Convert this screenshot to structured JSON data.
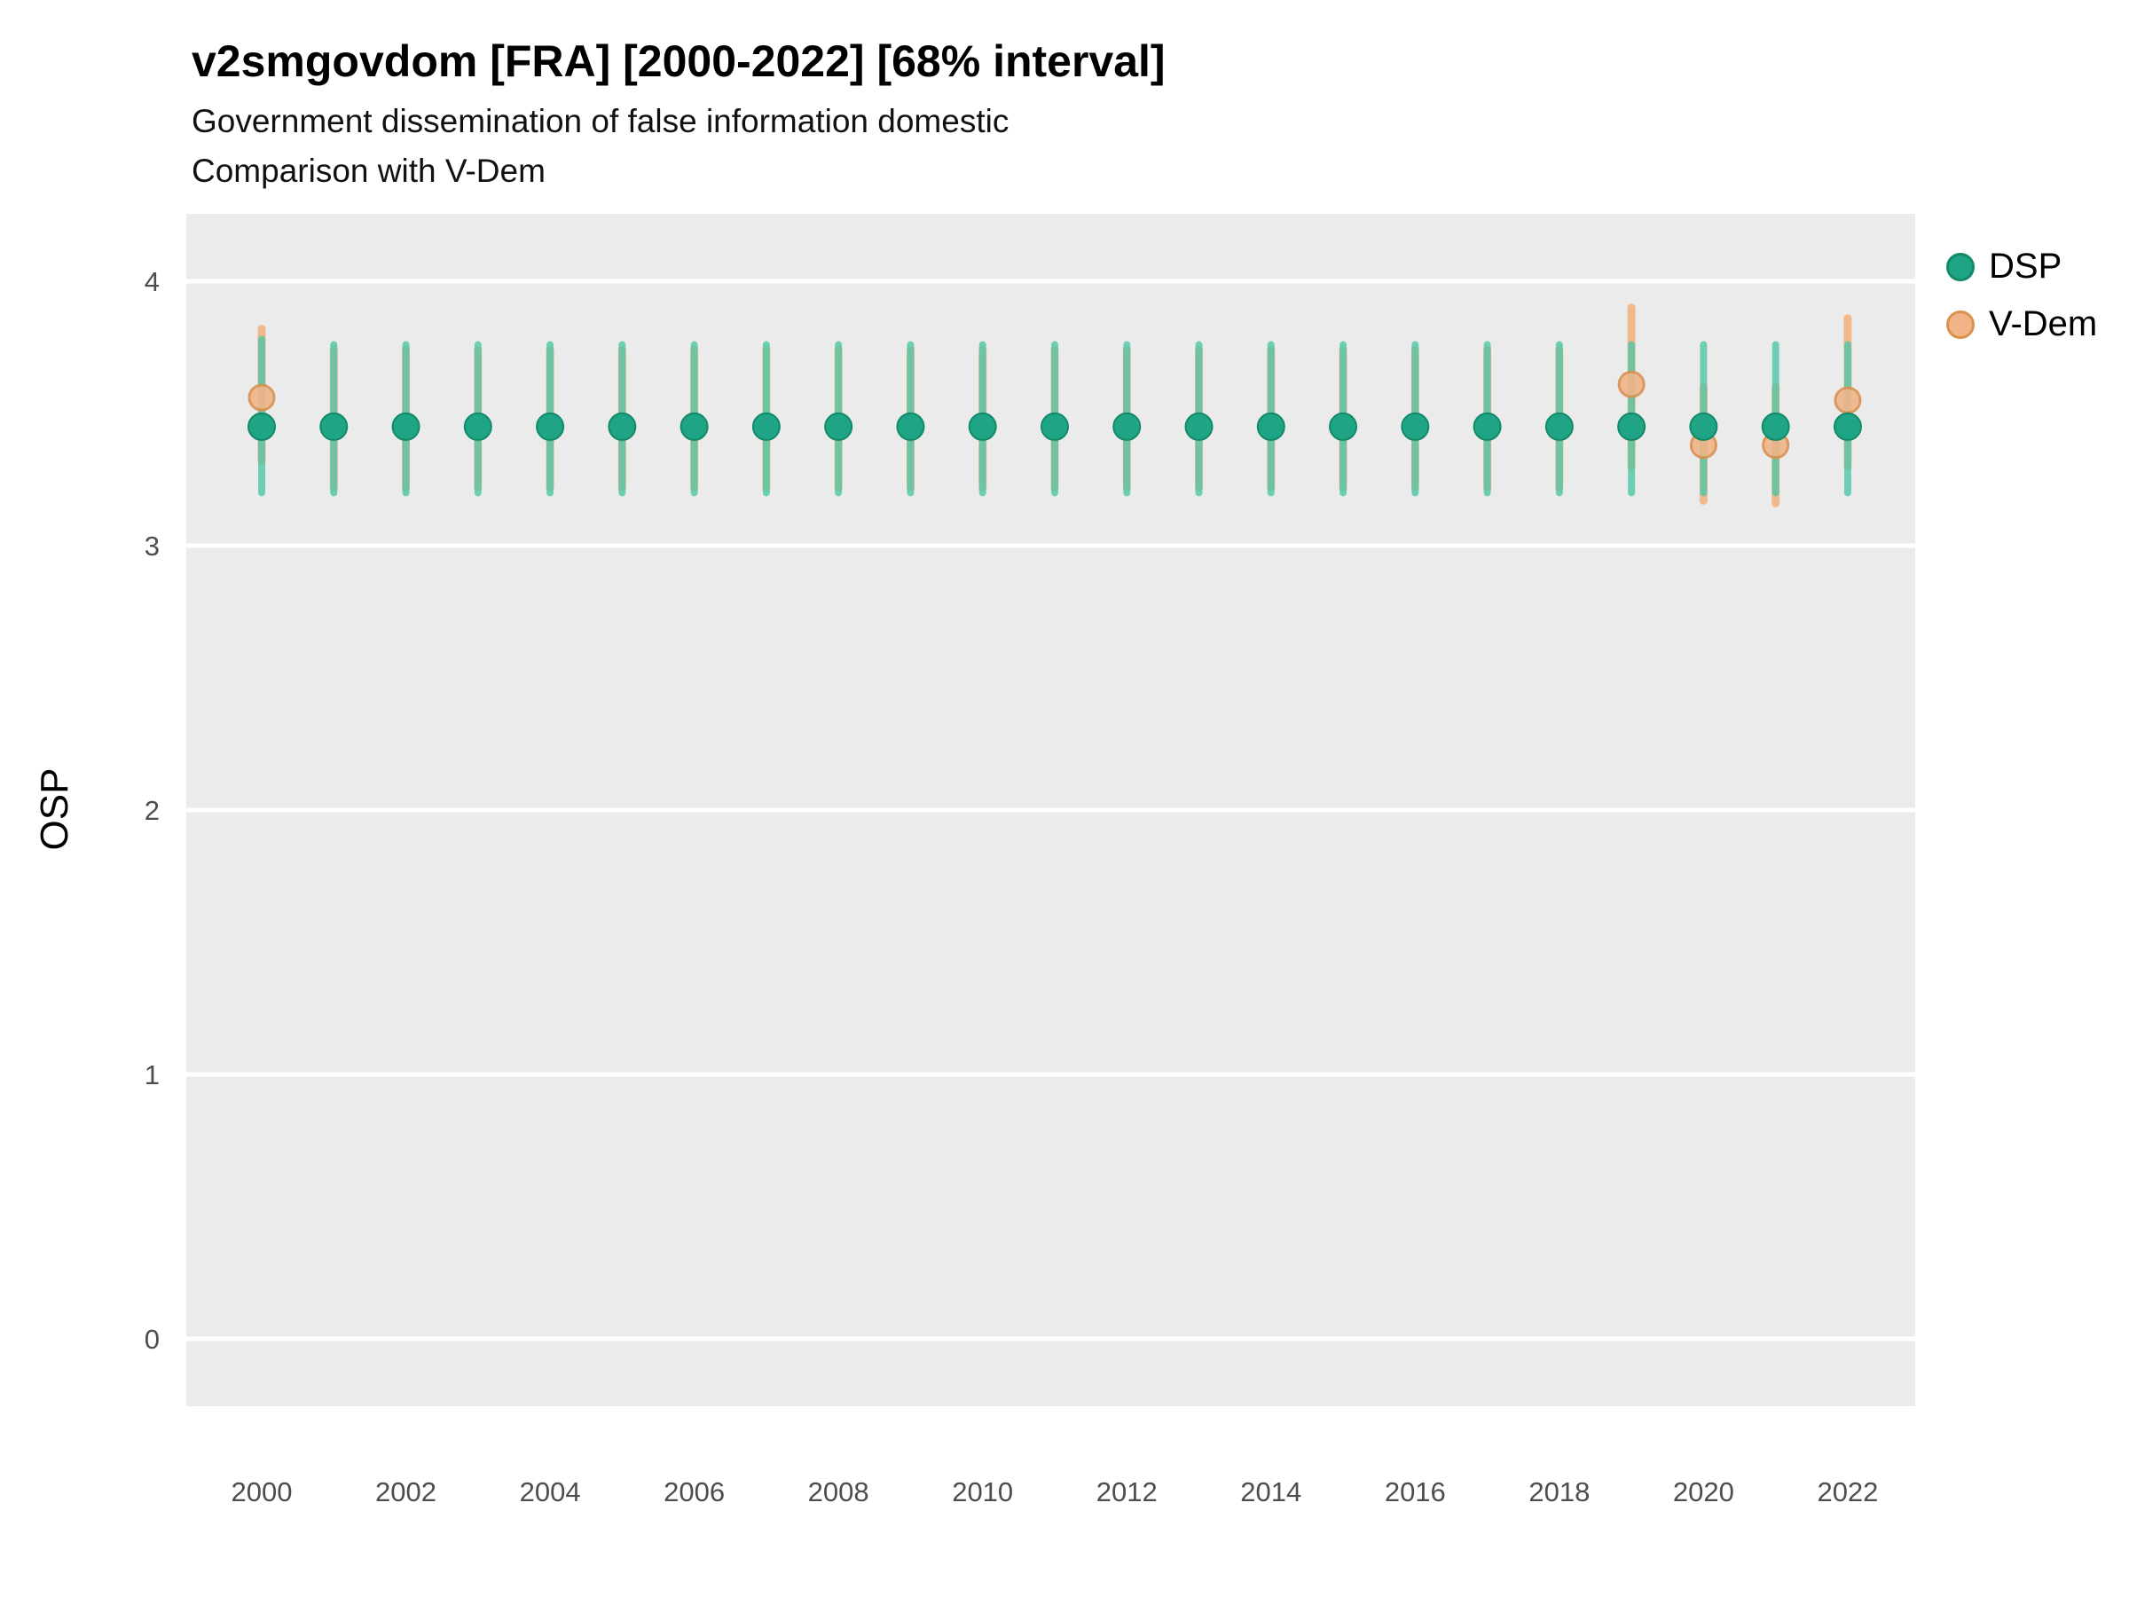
{
  "header": {
    "title": "v2smgovdom [FRA] [2000-2022] [68% interval]",
    "subtitle_line1": "Government dissemination of false information domestic",
    "subtitle_line2": "Comparison with V-Dem"
  },
  "legend": {
    "items": [
      {
        "label": "DSP",
        "fill": "#20a486",
        "stroke": "#128a68"
      },
      {
        "label": "V-Dem",
        "fill": "#f0b488",
        "stroke": "#d9914f"
      }
    ]
  },
  "chart_data": {
    "type": "scatter",
    "title": "v2smgovdom [FRA] [2000-2022] [68% interval]",
    "subtitle": "Government dissemination of false information domestic — Comparison with V-Dem",
    "ylabel": "OSP",
    "xlabel": "",
    "ylim": [
      -0.26,
      4.26
    ],
    "yticks": [
      0,
      1,
      2,
      3,
      4
    ],
    "xticks": [
      2000,
      2002,
      2004,
      2006,
      2008,
      2010,
      2012,
      2014,
      2016,
      2018,
      2020,
      2022
    ],
    "grid": true,
    "panel_bg": "#ebebeb",
    "grid_color": "#ffffff",
    "legend_position": "top-right",
    "interval": "68%",
    "years": [
      2000,
      2001,
      2002,
      2003,
      2004,
      2005,
      2006,
      2007,
      2008,
      2009,
      2010,
      2011,
      2012,
      2013,
      2014,
      2015,
      2016,
      2017,
      2018,
      2019,
      2020,
      2021,
      2022
    ],
    "series": [
      {
        "name": "DSP",
        "point_fill": "#20a486",
        "point_stroke": "#128a68",
        "interval_color": "#50c6a8",
        "values": [
          3.45,
          3.45,
          3.45,
          3.45,
          3.45,
          3.45,
          3.45,
          3.45,
          3.45,
          3.45,
          3.45,
          3.45,
          3.45,
          3.45,
          3.45,
          3.45,
          3.45,
          3.45,
          3.45,
          3.45,
          3.45,
          3.45,
          3.45
        ],
        "low": [
          3.2,
          3.2,
          3.2,
          3.2,
          3.2,
          3.2,
          3.2,
          3.2,
          3.2,
          3.2,
          3.2,
          3.2,
          3.2,
          3.2,
          3.2,
          3.2,
          3.2,
          3.2,
          3.2,
          3.2,
          3.2,
          3.2,
          3.2
        ],
        "high": [
          3.78,
          3.76,
          3.76,
          3.76,
          3.76,
          3.76,
          3.76,
          3.76,
          3.76,
          3.76,
          3.76,
          3.76,
          3.76,
          3.76,
          3.76,
          3.76,
          3.76,
          3.76,
          3.76,
          3.76,
          3.76,
          3.76,
          3.76
        ]
      },
      {
        "name": "V-Dem",
        "point_fill": "#f0b488",
        "point_stroke": "#d9914f",
        "interval_color": "#f2a96b",
        "values": [
          3.56,
          3.45,
          3.45,
          3.45,
          3.45,
          3.45,
          3.45,
          3.45,
          3.45,
          3.45,
          3.45,
          3.45,
          3.45,
          3.45,
          3.45,
          3.45,
          3.45,
          3.45,
          3.45,
          3.61,
          3.38,
          3.38,
          3.55
        ],
        "low": [
          3.32,
          3.22,
          3.22,
          3.22,
          3.22,
          3.22,
          3.22,
          3.22,
          3.22,
          3.22,
          3.22,
          3.22,
          3.22,
          3.22,
          3.22,
          3.22,
          3.22,
          3.22,
          3.22,
          3.3,
          3.17,
          3.16,
          3.3
        ],
        "high": [
          3.82,
          3.74,
          3.74,
          3.74,
          3.74,
          3.74,
          3.74,
          3.74,
          3.74,
          3.74,
          3.74,
          3.74,
          3.74,
          3.74,
          3.74,
          3.74,
          3.74,
          3.74,
          3.74,
          3.9,
          3.6,
          3.6,
          3.86
        ]
      }
    ]
  }
}
